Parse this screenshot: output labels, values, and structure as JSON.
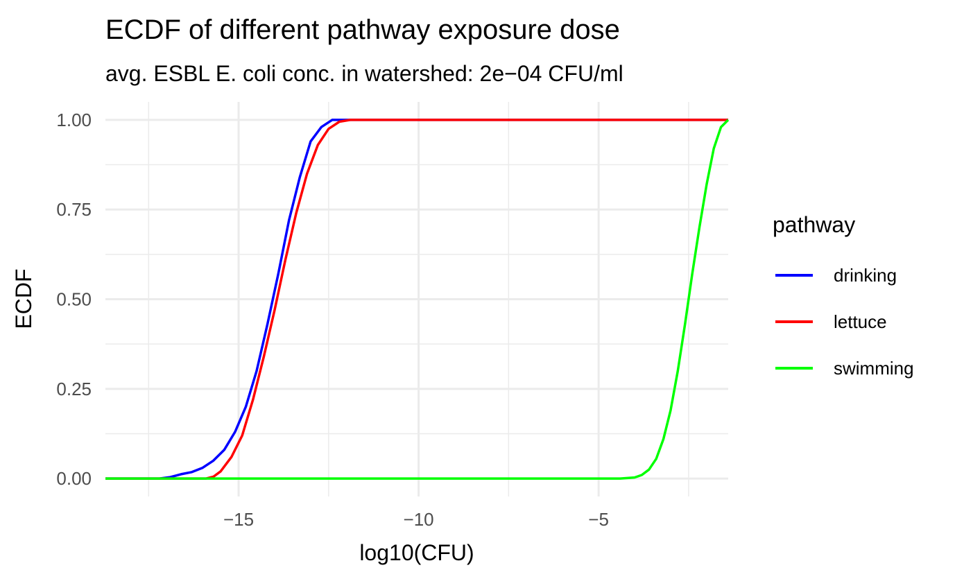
{
  "chart_data": {
    "type": "line",
    "title": "ECDF of different pathway exposure dose",
    "subtitle": "avg. ESBL E. coli conc. in watershed: 2e−04 CFU/ml",
    "xlabel": "log10(CFU)",
    "ylabel": "ECDF",
    "xlim": [
      -18.7,
      -1.4
    ],
    "ylim": [
      -0.05,
      1.05
    ],
    "x_ticks": [
      -15,
      -10,
      -5
    ],
    "x_tick_labels": [
      "−15",
      "−10",
      "−5"
    ],
    "y_ticks": [
      0,
      0.25,
      0.5,
      0.75,
      1.0
    ],
    "y_tick_labels": [
      "0.00",
      "0.25",
      "0.50",
      "0.75",
      "1.00"
    ],
    "grid": true,
    "legend": {
      "title": "pathway",
      "position": "right"
    },
    "series": [
      {
        "name": "drinking",
        "color": "#0000ff",
        "points": [
          [
            -18.7,
            0.0
          ],
          [
            -17.2,
            0.0
          ],
          [
            -16.9,
            0.004
          ],
          [
            -16.6,
            0.012
          ],
          [
            -16.3,
            0.018
          ],
          [
            -16.0,
            0.03
          ],
          [
            -15.7,
            0.05
          ],
          [
            -15.4,
            0.08
          ],
          [
            -15.1,
            0.13
          ],
          [
            -14.8,
            0.2
          ],
          [
            -14.5,
            0.3
          ],
          [
            -14.2,
            0.43
          ],
          [
            -13.9,
            0.57
          ],
          [
            -13.6,
            0.72
          ],
          [
            -13.3,
            0.84
          ],
          [
            -13.0,
            0.94
          ],
          [
            -12.7,
            0.98
          ],
          [
            -12.4,
            1.0
          ],
          [
            -12.0,
            1.0
          ],
          [
            -1.4,
            1.0
          ]
        ]
      },
      {
        "name": "lettuce",
        "color": "#ff0000",
        "points": [
          [
            -18.7,
            0.0
          ],
          [
            -15.9,
            0.0
          ],
          [
            -15.7,
            0.005
          ],
          [
            -15.5,
            0.02
          ],
          [
            -15.2,
            0.06
          ],
          [
            -14.9,
            0.12
          ],
          [
            -14.6,
            0.22
          ],
          [
            -14.3,
            0.34
          ],
          [
            -14.0,
            0.47
          ],
          [
            -13.7,
            0.61
          ],
          [
            -13.4,
            0.74
          ],
          [
            -13.1,
            0.85
          ],
          [
            -12.8,
            0.93
          ],
          [
            -12.5,
            0.975
          ],
          [
            -12.2,
            0.995
          ],
          [
            -11.9,
            1.0
          ],
          [
            -1.4,
            1.0
          ]
        ]
      },
      {
        "name": "swimming",
        "color": "#00ff00",
        "points": [
          [
            -18.7,
            0.0
          ],
          [
            -4.4,
            0.0
          ],
          [
            -4.0,
            0.003
          ],
          [
            -3.8,
            0.01
          ],
          [
            -3.6,
            0.025
          ],
          [
            -3.4,
            0.055
          ],
          [
            -3.2,
            0.11
          ],
          [
            -3.0,
            0.19
          ],
          [
            -2.8,
            0.3
          ],
          [
            -2.6,
            0.43
          ],
          [
            -2.4,
            0.57
          ],
          [
            -2.2,
            0.7
          ],
          [
            -2.0,
            0.82
          ],
          [
            -1.8,
            0.92
          ],
          [
            -1.6,
            0.98
          ],
          [
            -1.4,
            1.0
          ]
        ]
      }
    ]
  }
}
